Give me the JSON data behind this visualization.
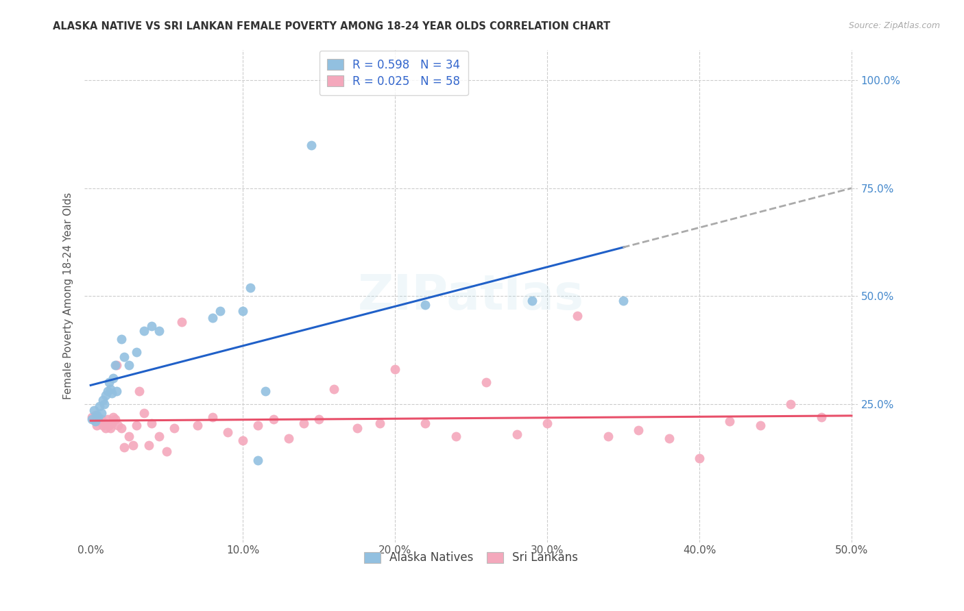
{
  "title": "ALASKA NATIVE VS SRI LANKAN FEMALE POVERTY AMONG 18-24 YEAR OLDS CORRELATION CHART",
  "source": "Source: ZipAtlas.com",
  "ylabel": "Female Poverty Among 18-24 Year Olds",
  "xlim": [
    0.0,
    0.5
  ],
  "ylim": [
    0.0,
    1.0
  ],
  "xticks": [
    0.0,
    0.1,
    0.2,
    0.3,
    0.4,
    0.5
  ],
  "xtick_labels": [
    "0.0%",
    "10.0%",
    "20.0%",
    "30.0%",
    "40.0%",
    "50.0%"
  ],
  "ytick_labels": [
    "100.0%",
    "75.0%",
    "50.0%",
    "25.0%"
  ],
  "ytick_vals": [
    1.0,
    0.75,
    0.5,
    0.25
  ],
  "alaska_R": 0.598,
  "alaska_N": 34,
  "srilankan_R": 0.025,
  "srilankan_N": 58,
  "alaska_color": "#92c0e0",
  "srilankan_color": "#f4a8bc",
  "alaska_line_color": "#2060c8",
  "srilankan_line_color": "#e8506a",
  "watermark": "ZIPatlas",
  "alaska_x": [
    0.001,
    0.002,
    0.003,
    0.004,
    0.005,
    0.006,
    0.007,
    0.008,
    0.009,
    0.01,
    0.011,
    0.012,
    0.013,
    0.014,
    0.015,
    0.016,
    0.017,
    0.02,
    0.022,
    0.025,
    0.03,
    0.035,
    0.04,
    0.045,
    0.08,
    0.085,
    0.1,
    0.105,
    0.11,
    0.115,
    0.145,
    0.22,
    0.29,
    0.35
  ],
  "alaska_y": [
    0.215,
    0.235,
    0.21,
    0.225,
    0.22,
    0.245,
    0.23,
    0.26,
    0.25,
    0.27,
    0.28,
    0.3,
    0.285,
    0.275,
    0.31,
    0.34,
    0.28,
    0.4,
    0.36,
    0.34,
    0.37,
    0.42,
    0.43,
    0.42,
    0.45,
    0.465,
    0.465,
    0.52,
    0.12,
    0.28,
    0.85,
    0.48,
    0.49,
    0.49
  ],
  "srilankan_x": [
    0.001,
    0.002,
    0.003,
    0.004,
    0.005,
    0.006,
    0.007,
    0.008,
    0.009,
    0.01,
    0.011,
    0.012,
    0.013,
    0.014,
    0.015,
    0.016,
    0.017,
    0.018,
    0.02,
    0.022,
    0.025,
    0.028,
    0.03,
    0.032,
    0.035,
    0.038,
    0.04,
    0.045,
    0.05,
    0.055,
    0.06,
    0.07,
    0.08,
    0.09,
    0.1,
    0.11,
    0.12,
    0.13,
    0.14,
    0.15,
    0.16,
    0.175,
    0.19,
    0.2,
    0.22,
    0.24,
    0.26,
    0.28,
    0.3,
    0.32,
    0.34,
    0.36,
    0.38,
    0.4,
    0.42,
    0.44,
    0.46,
    0.48
  ],
  "srilankan_y": [
    0.22,
    0.215,
    0.225,
    0.2,
    0.215,
    0.21,
    0.215,
    0.2,
    0.205,
    0.195,
    0.215,
    0.2,
    0.195,
    0.205,
    0.22,
    0.215,
    0.34,
    0.2,
    0.195,
    0.15,
    0.175,
    0.155,
    0.2,
    0.28,
    0.23,
    0.155,
    0.205,
    0.175,
    0.14,
    0.195,
    0.44,
    0.2,
    0.22,
    0.185,
    0.165,
    0.2,
    0.215,
    0.17,
    0.205,
    0.215,
    0.285,
    0.195,
    0.205,
    0.33,
    0.205,
    0.175,
    0.3,
    0.18,
    0.205,
    0.455,
    0.175,
    0.19,
    0.17,
    0.125,
    0.21,
    0.2,
    0.25,
    0.22
  ]
}
